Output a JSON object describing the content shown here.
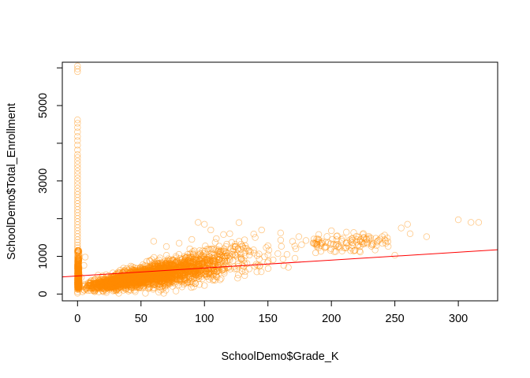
{
  "chart_data": {
    "type": "scatter",
    "xlabel": "SchoolDemo$Grade_K",
    "ylabel": "SchoolDemo$Total_Enrollment",
    "xlim": [
      -12,
      331
    ],
    "ylim": [
      -180,
      6150
    ],
    "x_ticks": [
      0,
      50,
      100,
      150,
      200,
      250,
      300
    ],
    "y_ticks": [
      0,
      1000,
      3000,
      5000
    ],
    "point_color": "#FF8C00",
    "line_color": "#FF0000",
    "marker": "open-circle",
    "grid": false,
    "legend": "none",
    "regression_line": {
      "intercept": 480,
      "slope": 2.1
    },
    "series": [
      {
        "points": [
          [
            0,
            6050
          ],
          [
            0,
            5970
          ],
          [
            0,
            5900
          ],
          [
            0,
            4620
          ],
          [
            0,
            4530
          ],
          [
            0,
            4420
          ],
          [
            0,
            4300
          ],
          [
            0,
            4180
          ],
          [
            0,
            4070
          ],
          [
            0,
            3950
          ],
          [
            0,
            3820
          ],
          [
            0,
            3700
          ],
          [
            0,
            3620
          ],
          [
            0,
            3530
          ],
          [
            0,
            3440
          ],
          [
            0,
            3350
          ],
          [
            0,
            3260
          ],
          [
            0,
            3170
          ],
          [
            0,
            3080
          ],
          [
            0,
            2990
          ],
          [
            0,
            2900
          ],
          [
            0,
            2810
          ],
          [
            0,
            2720
          ],
          [
            0,
            2640
          ],
          [
            0,
            2560
          ],
          [
            0,
            2480
          ],
          [
            0,
            2400
          ],
          [
            0,
            2320
          ],
          [
            0,
            2240
          ],
          [
            0,
            2160
          ],
          [
            0,
            2080
          ],
          [
            0,
            2000
          ],
          [
            0,
            1920
          ],
          [
            0,
            1840
          ],
          [
            0,
            1760
          ],
          [
            0,
            1680
          ],
          [
            0,
            1600
          ],
          [
            0,
            1520
          ],
          [
            0,
            1440
          ],
          [
            0,
            1370
          ],
          [
            0,
            1300
          ],
          [
            0,
            1230
          ],
          [
            0,
            1160
          ],
          [
            0,
            1090
          ],
          [
            0,
            1020
          ],
          [
            0,
            960
          ],
          [
            0,
            900
          ],
          [
            0,
            840
          ],
          [
            0,
            780
          ],
          [
            0,
            720
          ],
          [
            0,
            660
          ],
          [
            0,
            600
          ],
          [
            0,
            540
          ],
          [
            0,
            480
          ],
          [
            0,
            420
          ],
          [
            0,
            360
          ],
          [
            0,
            300
          ],
          [
            0,
            240
          ],
          [
            0,
            180
          ],
          [
            0,
            120
          ],
          [
            0,
            60
          ],
          [
            0,
            20
          ],
          [
            300,
            1970
          ],
          [
            316,
            1900
          ],
          [
            310,
            1900
          ],
          [
            275,
            1520
          ],
          [
            262,
            1600
          ],
          [
            260,
            1850
          ],
          [
            255,
            1750
          ],
          [
            250,
            1030
          ],
          [
            240,
            1520
          ],
          [
            235,
            1480
          ],
          [
            228,
            1450
          ],
          [
            220,
            1380
          ],
          [
            212,
            1350
          ],
          [
            205,
            1320
          ],
          [
            200,
            1680
          ],
          [
            195,
            1250
          ],
          [
            190,
            1580
          ],
          [
            180,
            1420
          ],
          [
            172,
            1200
          ],
          [
            165,
            1050
          ],
          [
            160,
            1620
          ],
          [
            150,
            1280
          ],
          [
            145,
            1700
          ],
          [
            140,
            1500
          ],
          [
            135,
            1150
          ],
          [
            120,
            1600
          ],
          [
            115,
            1580
          ],
          [
            105,
            1700
          ],
          [
            100,
            1850
          ],
          [
            95,
            1900
          ],
          [
            90,
            1450
          ],
          [
            80,
            1350
          ],
          [
            70,
            1260
          ],
          [
            60,
            1400
          ],
          [
            6,
            980
          ],
          [
            5,
            760
          ],
          [
            3,
            440
          ],
          [
            2,
            180
          ],
          [
            1,
            320
          ],
          [
            7,
            120
          ],
          [
            4,
            60
          ]
        ]
      }
    ]
  }
}
